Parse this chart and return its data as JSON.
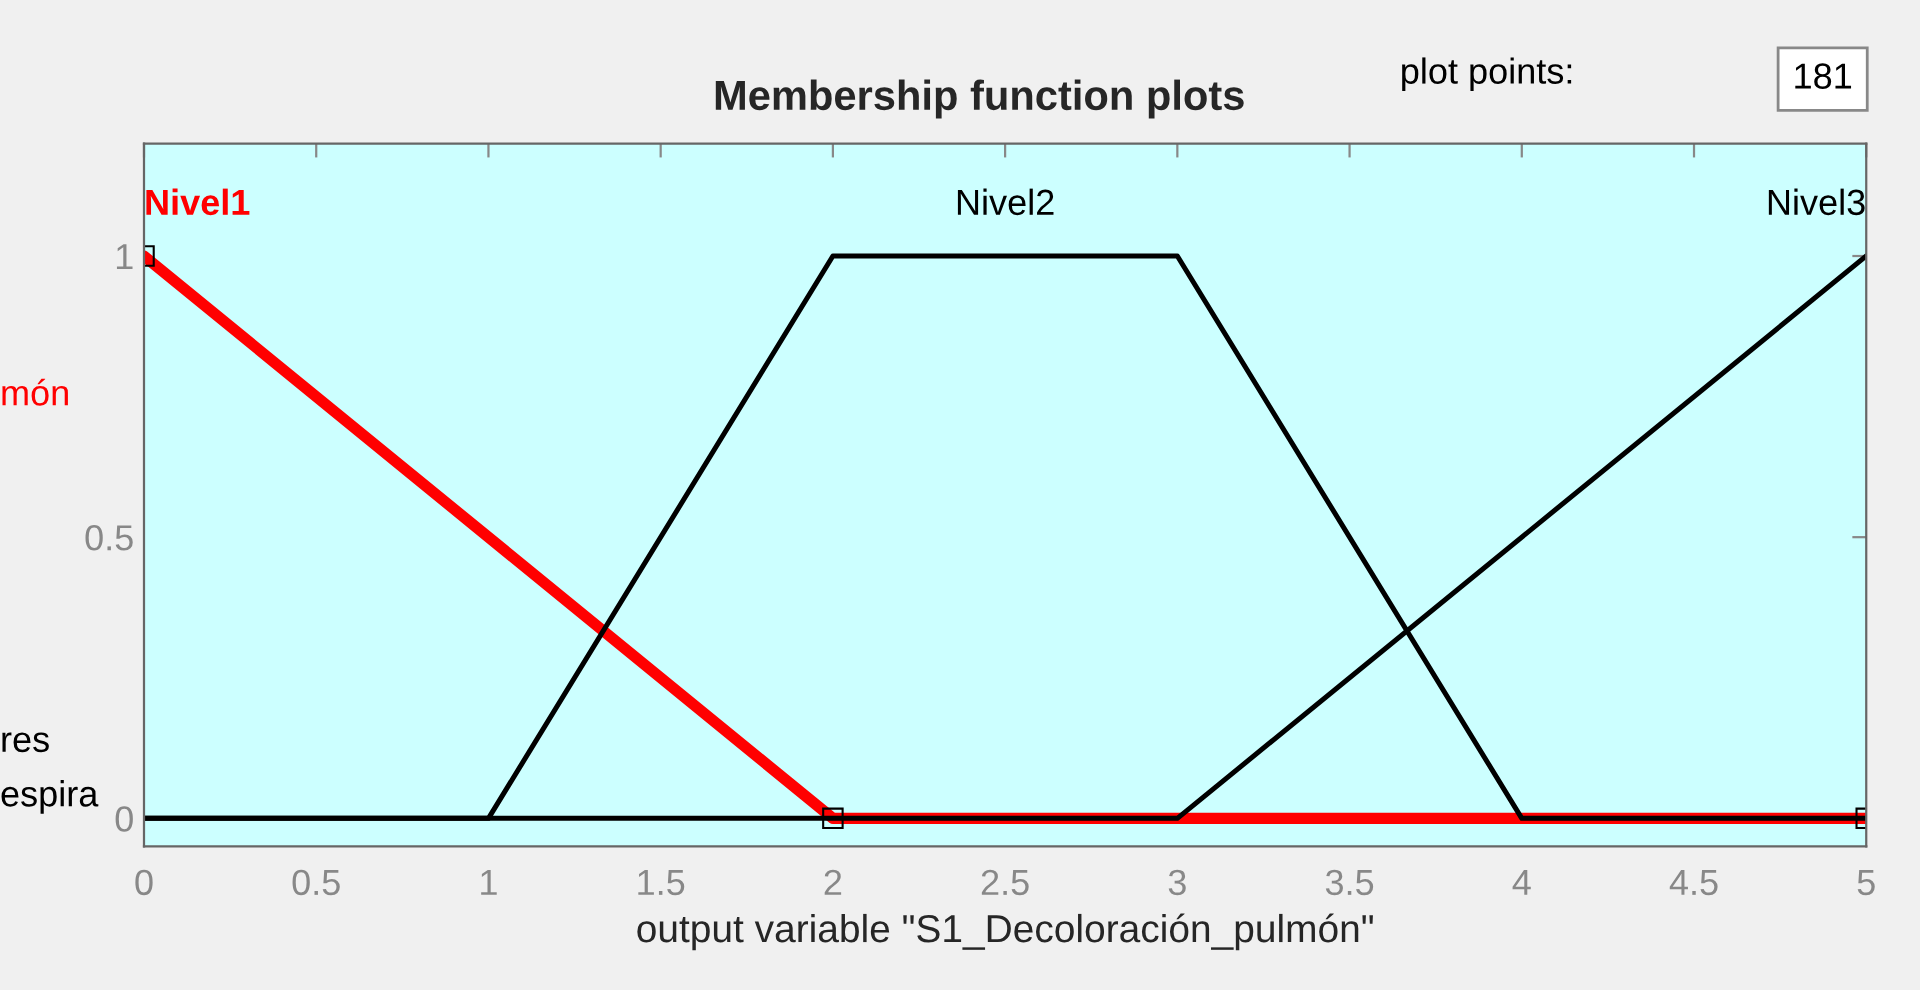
{
  "chart_data": {
    "type": "line",
    "title": "Membership function plots",
    "xlabel": "output variable \"S1_Decoloración_pulmón\"",
    "series": [
      {
        "name": "Nivel1",
        "color": "#ff0000",
        "x": [
          0,
          2,
          5
        ],
        "values": [
          1,
          0,
          0
        ],
        "marker": "square"
      },
      {
        "name": "Nivel2",
        "color": "#000000",
        "x": [
          0,
          1,
          2,
          3,
          4,
          5
        ],
        "values": [
          0,
          0,
          1,
          1,
          0,
          0
        ]
      },
      {
        "name": "Nivel3",
        "color": "#000000",
        "x": [
          0,
          3,
          5
        ],
        "values": [
          0,
          0,
          1
        ]
      }
    ],
    "xlim": [
      0,
      5
    ],
    "xticks": [
      0,
      0.5,
      1,
      1.5,
      2,
      2.5,
      3,
      3.5,
      4,
      4.5,
      5
    ],
    "ylim": [
      -0.05,
      1.2
    ],
    "yticks": [
      0,
      0.5,
      1
    ],
    "grid": false,
    "legend": false,
    "annotations": [
      "plot points:",
      "181",
      "món",
      "res",
      "espira"
    ]
  }
}
